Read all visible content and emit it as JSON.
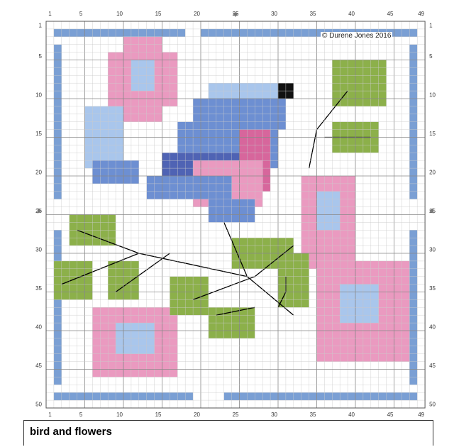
{
  "pattern": {
    "title": "bird and flowers",
    "copyright": "© Durene Jones 2016",
    "grid_size": 49,
    "axis_labels": {
      "top": [
        "1",
        "5",
        "10",
        "15",
        "20",
        "25",
        "30",
        "35",
        "40",
        "45",
        "49"
      ],
      "bottom": [
        "1",
        "5",
        "10",
        "15",
        "20",
        "25",
        "30",
        "35",
        "40",
        "45",
        "49"
      ],
      "left": [
        "1",
        "5",
        "10",
        "15",
        "20",
        "25",
        "30",
        "35",
        "40",
        "45",
        "50"
      ],
      "right": [
        "1",
        "5",
        "10",
        "15",
        "20",
        "25",
        "30",
        "35",
        "40",
        "45",
        "50"
      ]
    },
    "colors": {
      "border_blue": "#7a9fd4",
      "pink": "#d7669c",
      "light_pink": "#ea9ac0",
      "blue": "#6d8fd2",
      "dark_blue": "#4f63b4",
      "light_blue": "#a9c6ec",
      "green": "#8cb04a",
      "light_green": "#b6cf7b",
      "backstitch": "#000000",
      "gridline": "#c8c8c8"
    }
  }
}
